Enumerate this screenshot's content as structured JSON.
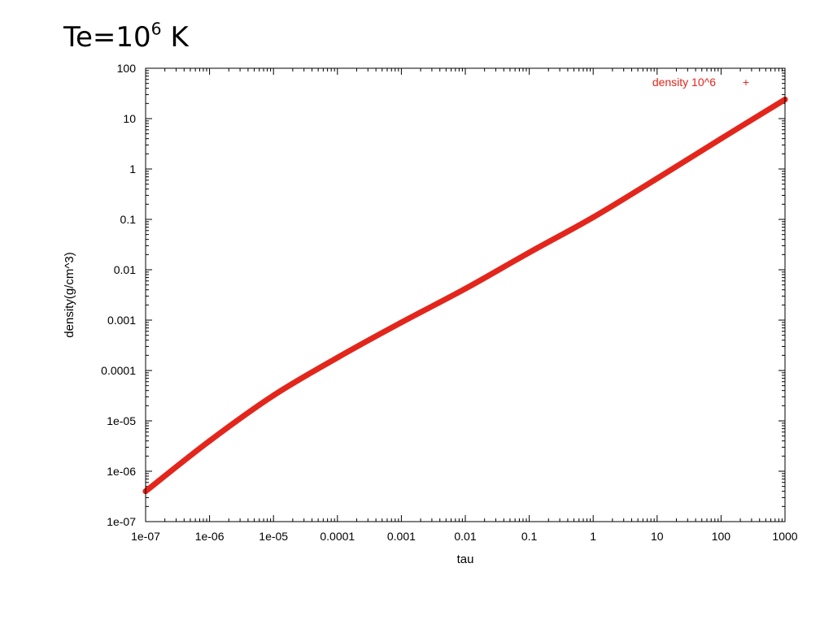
{
  "slide": {
    "title_base": "Te=10",
    "title_exp": "6",
    "title_unit": " K"
  },
  "chart_data": {
    "type": "line",
    "title": "",
    "xlabel": "tau",
    "ylabel": "density(g/cm^3)",
    "xscale": "log",
    "yscale": "log",
    "xlim": [
      1e-07,
      1000
    ],
    "ylim": [
      1e-07,
      100
    ],
    "xticks": [
      "1e-07",
      "1e-06",
      "1e-05",
      "0.0001",
      "0.001",
      "0.01",
      "0.1",
      "1",
      "10",
      "100",
      "1000"
    ],
    "yticks": [
      "1e-07",
      "1e-06",
      "1e-05",
      "0.0001",
      "0.001",
      "0.01",
      "0.1",
      "1",
      "10",
      "100"
    ],
    "grid": false,
    "legend_position": "top-right",
    "series": [
      {
        "name": "density 10^6",
        "marker": "+",
        "color": "#e3261c",
        "x": [
          1e-07,
          1e-06,
          1e-05,
          0.0001,
          0.001,
          0.01,
          0.1,
          1,
          10,
          100,
          1000
        ],
        "y": [
          4e-07,
          4e-06,
          3.2e-05,
          0.00018,
          0.0009,
          0.0042,
          0.022,
          0.11,
          0.65,
          4,
          24
        ]
      }
    ]
  }
}
